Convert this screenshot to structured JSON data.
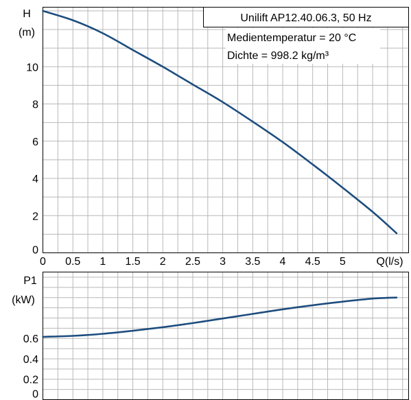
{
  "legend": {
    "title": "Unilift AP12.40.06.3, 50 Hz",
    "lines": [
      "Medientemperatur = 20 °C",
      "Dichte = 998.2 kg/m³"
    ]
  },
  "colors": {
    "curve": "#1d4d7e",
    "grid": "#b8b8b8",
    "frame": "#000000"
  },
  "chart_data": [
    {
      "type": "line",
      "ylabel_top": "H",
      "ylabel_unit": "(m)",
      "xlabel": "Q(l/s)",
      "xlim": [
        0,
        6.1
      ],
      "ylim": [
        0,
        13.2
      ],
      "grid": true,
      "x_ticks": [
        "0",
        "0.5",
        "1",
        "1.5",
        "2",
        "2.5",
        "3",
        "3.5",
        "4",
        "4.5",
        "5"
      ],
      "y_ticks": [
        "0",
        "2",
        "4",
        "6",
        "8",
        "10"
      ],
      "series": [
        {
          "x": [
            0,
            0.5,
            1,
            1.5,
            2,
            2.5,
            3,
            3.5,
            4,
            4.5,
            5,
            5.5,
            5.9
          ],
          "y": [
            13.0,
            12.5,
            11.8,
            10.9,
            10.0,
            9.05,
            8.1,
            7.05,
            5.95,
            4.75,
            3.5,
            2.2,
            1.05
          ]
        }
      ]
    },
    {
      "type": "line",
      "ylabel_top": "P1",
      "ylabel_unit": "(kW)",
      "xlim": [
        0,
        6.1
      ],
      "ylim": [
        0,
        1.25
      ],
      "grid": true,
      "y_ticks": [
        "0",
        "0.2",
        "0.4",
        "0.6"
      ],
      "series": [
        {
          "x": [
            0,
            0.5,
            1,
            1.5,
            2,
            2.5,
            3,
            3.5,
            4,
            4.5,
            5,
            5.5,
            5.9
          ],
          "y": [
            0.615,
            0.625,
            0.645,
            0.675,
            0.71,
            0.75,
            0.795,
            0.84,
            0.885,
            0.925,
            0.96,
            0.99,
            1.0
          ]
        }
      ]
    }
  ]
}
